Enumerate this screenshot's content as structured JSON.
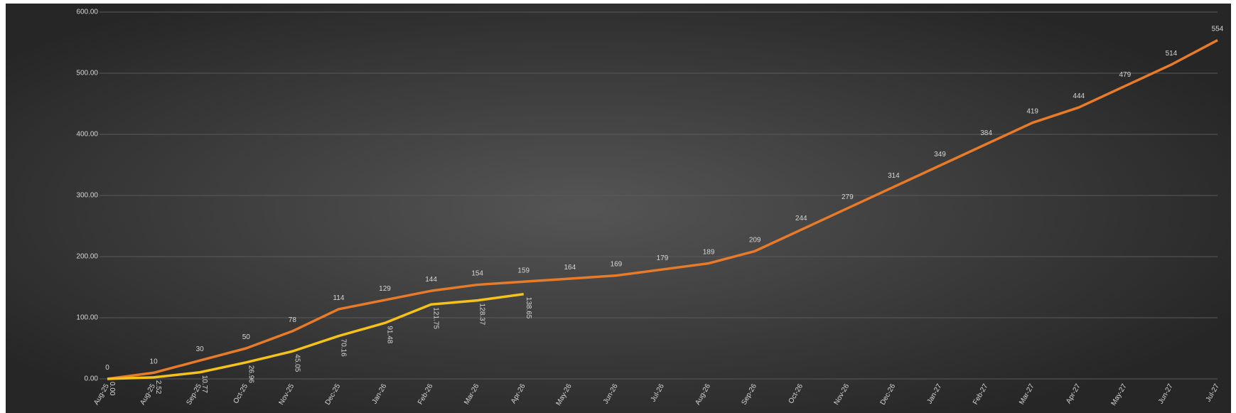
{
  "chart_data": {
    "type": "line",
    "categories": [
      "Aug-25",
      "Aug-25",
      "Sep-25",
      "Oct-25",
      "Nov-25",
      "Dec-25",
      "Jan-26",
      "Feb-26",
      "Mar-26",
      "Apr-26",
      "May-26",
      "Jun-26",
      "Jul-26",
      "Aug-26",
      "Sep-26",
      "Oct-26",
      "Nov-26",
      "Dec-26",
      "Jan-27",
      "Feb-27",
      "Mar-27",
      "Apr-27",
      "May-27",
      "Jun-27",
      "Jul-27"
    ],
    "series": [
      {
        "color": "#e87b2a",
        "values": [
          0,
          10,
          30,
          50,
          78,
          114,
          129,
          144,
          154,
          159,
          164,
          169,
          179,
          189,
          209,
          244,
          279,
          314,
          349,
          384,
          419,
          444,
          479,
          514,
          554
        ]
      },
      {
        "color": "#f5c21b",
        "values": [
          0,
          2.52,
          10.77,
          26.96,
          45.05,
          70.16,
          91.48,
          121.75,
          128.37,
          138.65,
          null,
          null,
          null,
          null,
          null,
          null,
          null,
          null,
          null,
          null,
          null,
          null,
          null,
          null,
          null
        ],
        "value_labels": [
          "0.00",
          "2.52",
          "10.77",
          "26.96",
          "45.05",
          "70.16",
          "91.48",
          "121.75",
          "128.37",
          "138.65",
          null,
          null,
          null,
          null,
          null,
          null,
          null,
          null,
          null,
          null,
          null,
          null,
          null,
          null,
          null
        ]
      }
    ],
    "ylim": [
      0,
      600
    ],
    "yticks": [
      {
        "value": 0,
        "label": "0.00"
      },
      {
        "value": 100,
        "label": "100.00"
      },
      {
        "value": 200,
        "label": "200.00"
      },
      {
        "value": 300,
        "label": "300.00"
      },
      {
        "value": 400,
        "label": "400.00"
      },
      {
        "value": 500,
        "label": "500.00"
      },
      {
        "value": 600,
        "label": "600.00"
      }
    ],
    "grid": true
  }
}
